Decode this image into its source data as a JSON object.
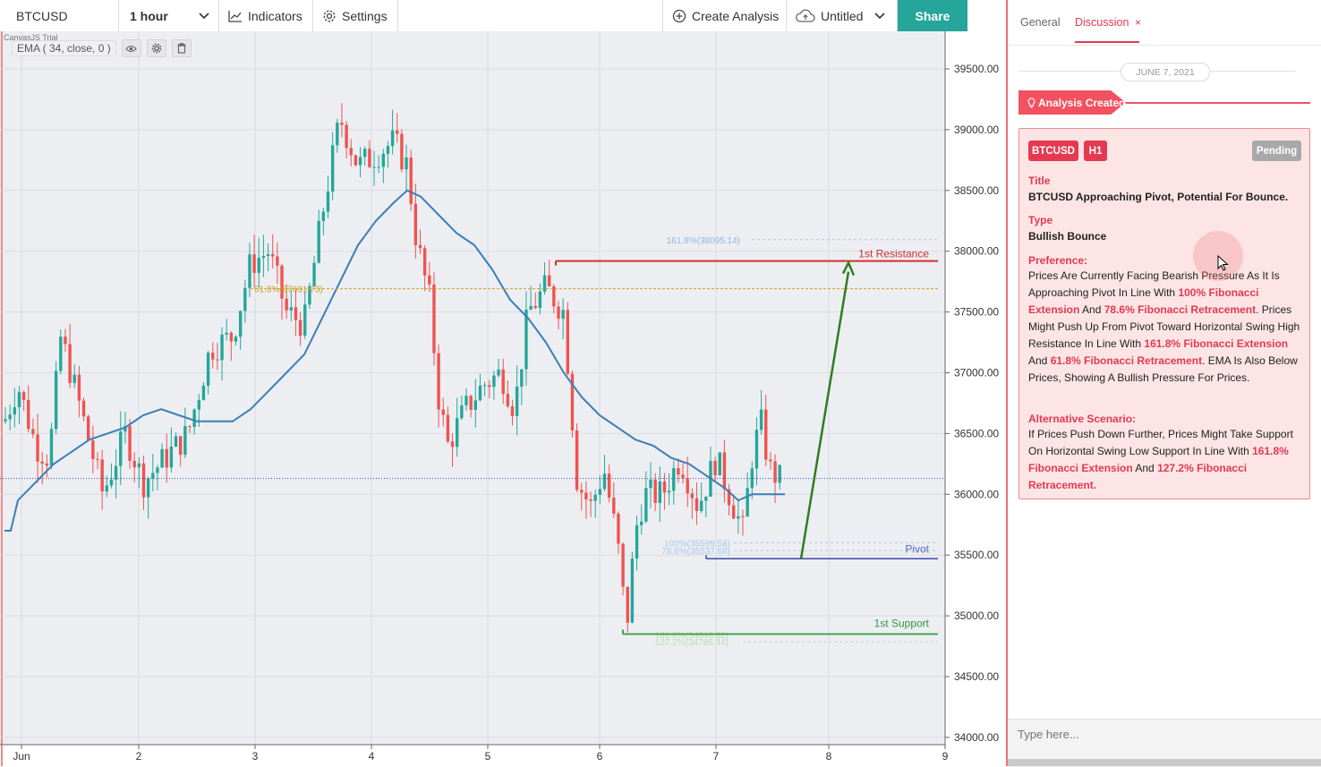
{
  "toolbar": {
    "symbol": "BTCUSD",
    "timeframe": "1 hour",
    "indicators_label": "Indicators",
    "settings_label": "Settings",
    "create_analysis_label": "Create Analysis",
    "document_label": "Untitled",
    "share_label": "Share"
  },
  "chart": {
    "watermark": "CanvasJS Trial",
    "ema_label": "EMA ( 34, close, 0 )",
    "y_ticks": [
      "39500.00",
      "39000.00",
      "38500.00",
      "38000.00",
      "37500.00",
      "37000.00",
      "36500.00",
      "36000.00",
      "35500.00",
      "35000.00",
      "34500.00",
      "34000.00"
    ],
    "x_ticks": [
      "Jun",
      "2",
      "3",
      "4",
      "5",
      "6",
      "7",
      "8",
      "9"
    ],
    "levels": {
      "resistance": "1st Resistance",
      "pivot": "Pivot",
      "support": "1st Support"
    },
    "fib_labels": {
      "ext_1618_top": "161.8%(38095.14)",
      "ret_618": "61.8%(37691.73)",
      "ext_100": "100%(35599.58)",
      "ret_786": "78.6%(35537.68)",
      "ext_1618_bottom": "161.8%(34846.32)",
      "ext_1272": "127.2%(34786.44)"
    },
    "colors": {
      "bull": "#26a69a",
      "bear": "#ef5350",
      "ema": "#3a7fb5",
      "resistance": "#d32f2f",
      "pivot": "#3949ab",
      "support": "#2e9d3a",
      "arrow": "#2e7d1f"
    }
  },
  "chart_data": {
    "type": "candlestick",
    "title": "",
    "ylim": [
      33950,
      39800
    ],
    "x_categories": [
      "Jun",
      "2",
      "3",
      "4",
      "5",
      "6",
      "7",
      "8",
      "9"
    ],
    "overlay": "EMA (34, close, 0)",
    "level_values": {
      "resistance": 37920,
      "pivot": 35470,
      "support": 34850,
      "current_price": 36130
    },
    "fib_values": {
      "ext_1618_top": 38095.14,
      "ret_618": 37691.73,
      "ext_100": 35599.58,
      "ret_786": 35537.68,
      "ext_1618_bottom": 34846.32,
      "ext_1272": 34786.44
    },
    "projection_target": 37920
  },
  "panel": {
    "tab_general": "General",
    "tab_discussion": "Discussion",
    "close_symbol": "×",
    "date": "JUNE 7, 2021",
    "banner": "Analysis Created",
    "card": {
      "symbol_badge": "BTCUSD",
      "timeframe_badge": "H1",
      "status_badge": "Pending",
      "title_label": "Title",
      "title_value": "BTCUSD Approaching Pivot, Potential For Bounce.",
      "type_label": "Type",
      "type_value": "Bullish Bounce",
      "preference_label": "Preference:",
      "pref_1": "Prices Are Currently Facing Bearish Pressure As It Is Approaching Pivot In Line With ",
      "pref_2": "100% Fibonacci Extension",
      "pref_3": " And ",
      "pref_4": "78.6% Fibonacci Retracement",
      "pref_5": ". Prices Might Push Up From Pivot Toward Horizontal Swing High Resistance In Line With ",
      "pref_6": "161.8% Fibonacci Extension",
      "pref_7": " And ",
      "pref_8": "61.8% Fibonacci Retracement",
      "pref_9": ". EMA Is Also Below Prices, Showing A Bullish Pressure For Prices.",
      "alt_label": "Alternative Scenario:",
      "alt_1": "If Prices Push Down Further, Prices Might Take Support On Horizontal Swing Low Support In Line With ",
      "alt_2": "161.8% Fibonacci Extension",
      "alt_3": " And ",
      "alt_4": "127.2% Fibonacci Retracement."
    },
    "input_placeholder": "Type here..."
  }
}
